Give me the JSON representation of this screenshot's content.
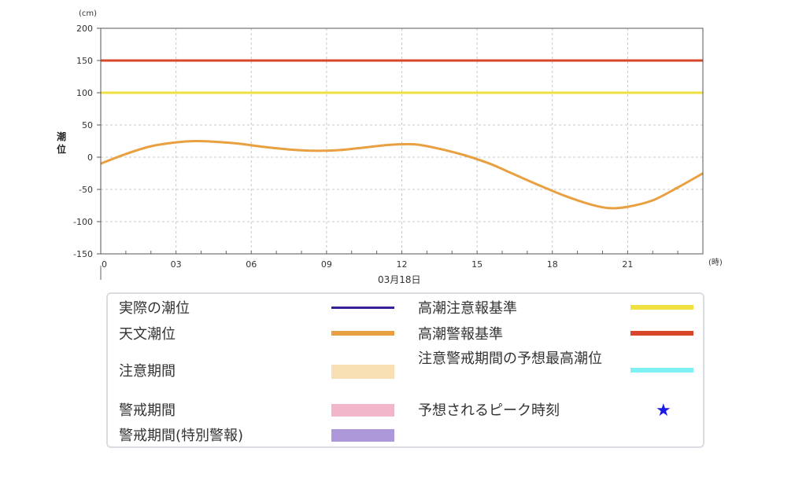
{
  "chart_data": {
    "type": "line",
    "unit_label": "(cm)",
    "ylabel": "潮位",
    "xunit_label": "(時)",
    "date_label": "03月18日",
    "ylim": [
      -150,
      200
    ],
    "yticks": [
      200,
      150,
      100,
      50,
      0,
      -50,
      -100,
      -150
    ],
    "xlim": [
      0,
      24
    ],
    "xticks": [
      {
        "x": 0,
        "label": "0"
      },
      {
        "x": 3,
        "label": "03"
      },
      {
        "x": 6,
        "label": "06"
      },
      {
        "x": 9,
        "label": "09"
      },
      {
        "x": 12,
        "label": "12"
      },
      {
        "x": 15,
        "label": "15"
      },
      {
        "x": 18,
        "label": "18"
      },
      {
        "x": 21,
        "label": "21"
      }
    ],
    "grid": true,
    "series": [
      {
        "name": "天文潮位",
        "color": "#e8a040",
        "x": [
          0,
          1,
          2,
          3,
          3.75,
          4.5,
          5.5,
          6.5,
          7.5,
          8.5,
          9.5,
          10.5,
          11.5,
          12.5,
          13.5,
          14.5,
          15.5,
          16.5,
          17.5,
          18.5,
          19.5,
          20.25,
          21,
          22,
          23,
          24
        ],
        "y": [
          -10,
          5,
          17,
          23,
          25,
          24,
          21,
          16,
          12,
          10,
          11,
          15,
          19,
          20,
          13,
          3,
          -10,
          -27,
          -44,
          -60,
          -73,
          -79,
          -77,
          -67,
          -47,
          -25
        ]
      }
    ],
    "reference_lines": [
      {
        "name": "高潮警報基準",
        "value": 150,
        "color": "#d9472b"
      },
      {
        "name": "高潮注意報基準",
        "value": 100,
        "color": "#f0e040"
      }
    ]
  },
  "legend": {
    "items": [
      {
        "id": "actual",
        "label": "実際の潮位",
        "kind": "line",
        "color": "#3a1f9a"
      },
      {
        "id": "astro",
        "label": "天文潮位",
        "kind": "line",
        "color": "#e8a040"
      },
      {
        "id": "caution-period",
        "label": "注意期間",
        "kind": "box",
        "color": "#f8dfb3"
      },
      {
        "id": "warning-period",
        "label": "警戒期間",
        "kind": "box",
        "color": "#f2b6cb"
      },
      {
        "id": "special-period",
        "label": "警戒期間(特別警報)",
        "kind": "box",
        "color": "#ad98d9"
      },
      {
        "id": "caution-std",
        "label": "高潮注意報基準",
        "kind": "line",
        "color": "#f0e040"
      },
      {
        "id": "warning-std",
        "label": "高潮警報基準",
        "kind": "line",
        "color": "#d9472b"
      },
      {
        "id": "max-forecast",
        "label": "注意警戒期間の予想最高潮位",
        "kind": "line",
        "color": "#7ff0f4"
      },
      {
        "id": "peak-time",
        "label": "予想されるピーク時刻",
        "kind": "star",
        "color": "#1a1ae6",
        "symbol": "★"
      }
    ]
  }
}
